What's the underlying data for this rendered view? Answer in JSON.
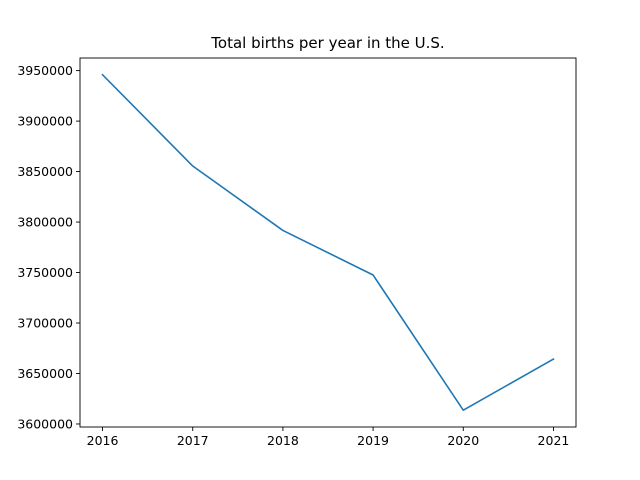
{
  "chart_data": {
    "type": "line",
    "title": "Total births per year in the U.S.",
    "xlabel": "",
    "ylabel": "",
    "x": [
      2016,
      2017,
      2018,
      2019,
      2020,
      2021
    ],
    "series": [
      {
        "values": [
          3945875,
          3855500,
          3791712,
          3747540,
          3613647,
          3664292
        ],
        "color": "#1f77b4"
      }
    ],
    "xticks": [
      "2016",
      "2017",
      "2018",
      "2019",
      "2020",
      "2021"
    ],
    "yticks": [
      "3600000",
      "3650000",
      "3700000",
      "3750000",
      "3800000",
      "3850000",
      "3900000",
      "3950000"
    ],
    "xlim": [
      2015.75,
      2021.25
    ],
    "ylim": [
      3597000,
      3962500
    ],
    "grid": false,
    "legend": "none"
  }
}
